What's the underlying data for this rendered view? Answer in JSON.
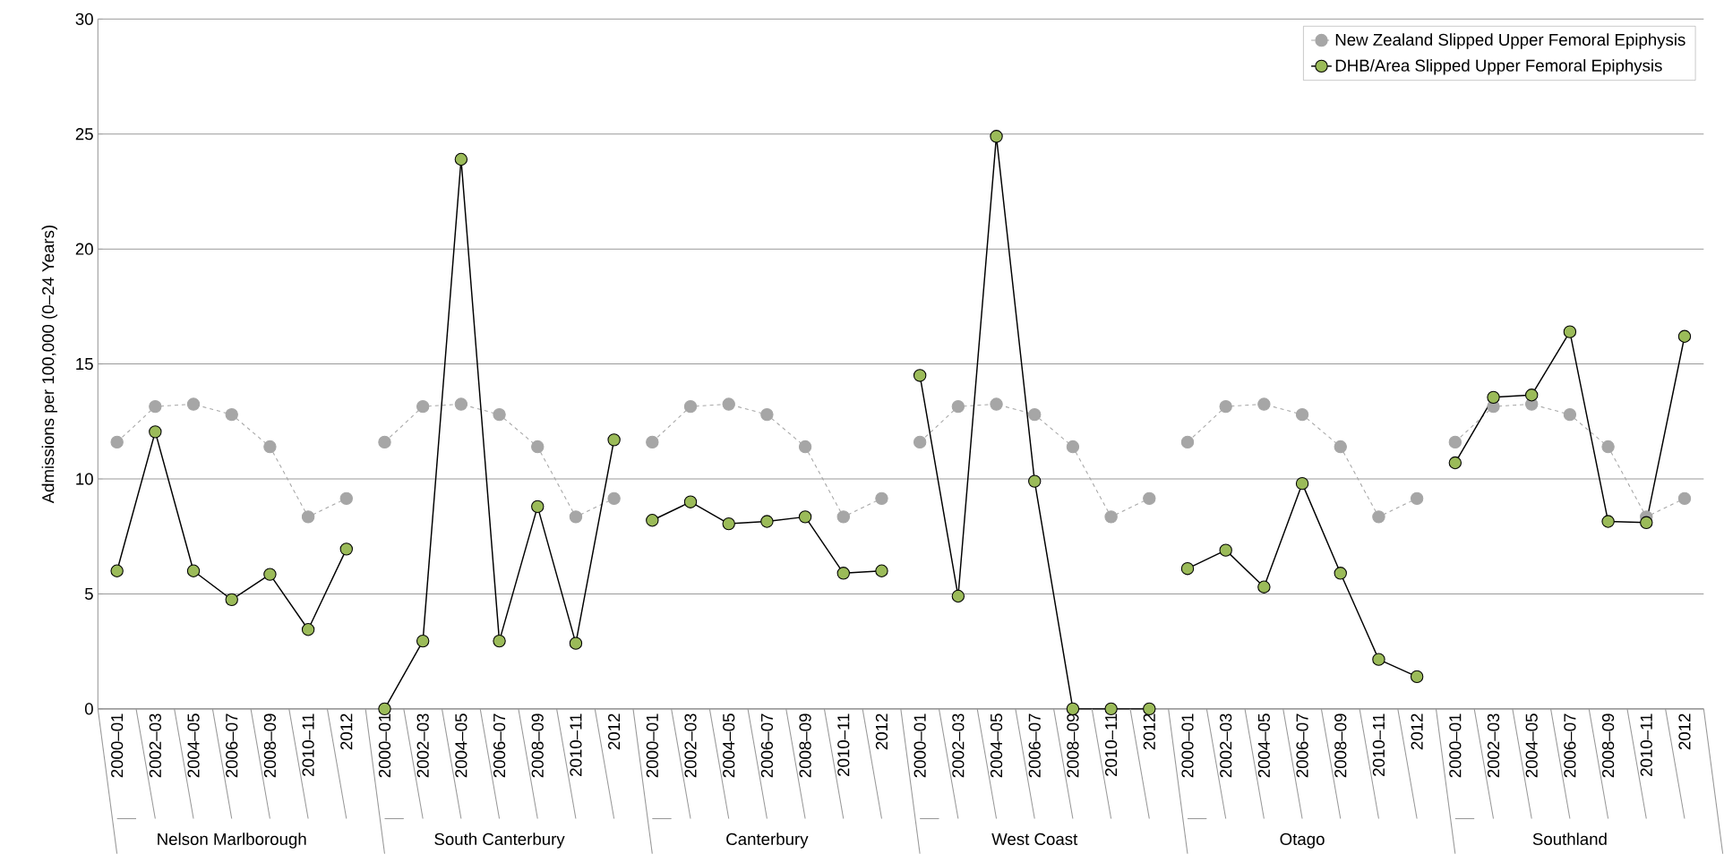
{
  "chart_data": {
    "type": "line",
    "ylabel": "Admissions per 100,000 (0–24  Years)",
    "categories": [
      "2000–01",
      "2002–03",
      "2004–05",
      "2006–07",
      "2008–09",
      "2010–11",
      "2012",
      "2000–01",
      "2002–03",
      "2004–05",
      "2006–07",
      "2008–09",
      "2010–11",
      "2012",
      "2000–01",
      "2002–03",
      "2004–05",
      "2006–07",
      "2008–09",
      "2010–11",
      "2012",
      "2000–01",
      "2002–03",
      "2004–05",
      "2006–07",
      "2008–09",
      "2010–11",
      "2012",
      "2000–01",
      "2002–03",
      "2004–05",
      "2006–07",
      "2008–09",
      "2010–11",
      "2012",
      "2000–01",
      "2002–03",
      "2004–05",
      "2006–07",
      "2008–09",
      "2010–11",
      "2012"
    ],
    "series": [
      {
        "name": "New Zealand  Slipped Upper Femoral Epiphysis",
        "color": "#a6a6a6",
        "line_style": "dashed",
        "values": [
          11.6,
          13.15,
          13.25,
          12.8,
          11.4,
          8.35,
          9.15,
          null,
          null,
          null,
          null,
          null,
          null,
          null,
          null,
          null,
          null,
          null,
          null,
          null,
          null,
          null,
          null,
          null,
          null,
          null,
          null,
          null,
          null,
          null,
          null,
          null,
          null,
          null,
          null,
          null,
          null,
          null,
          null,
          null,
          null,
          null
        ]
      },
      {
        "color": "#a6a6a6",
        "line_style": "dashed",
        "values": [
          null,
          null,
          null,
          null,
          null,
          null,
          null,
          11.6,
          13.15,
          13.25,
          12.8,
          11.4,
          8.35,
          9.15,
          null,
          null,
          null,
          null,
          null,
          null,
          null,
          null,
          null,
          null,
          null,
          null,
          null,
          null,
          null,
          null,
          null,
          null,
          null,
          null,
          null,
          null,
          null,
          null,
          null,
          null,
          null,
          null
        ]
      },
      {
        "color": "#a6a6a6",
        "line_style": "dashed",
        "values": [
          null,
          null,
          null,
          null,
          null,
          null,
          null,
          null,
          null,
          null,
          null,
          null,
          null,
          null,
          11.6,
          13.15,
          13.25,
          12.8,
          11.4,
          8.35,
          9.15,
          null,
          null,
          null,
          null,
          null,
          null,
          null,
          null,
          null,
          null,
          null,
          null,
          null,
          null,
          null,
          null,
          null,
          null,
          null,
          null,
          null
        ]
      },
      {
        "color": "#a6a6a6",
        "line_style": "dashed",
        "values": [
          null,
          null,
          null,
          null,
          null,
          null,
          null,
          null,
          null,
          null,
          null,
          null,
          null,
          null,
          null,
          null,
          null,
          null,
          null,
          null,
          null,
          11.6,
          13.15,
          13.25,
          12.8,
          11.4,
          8.35,
          9.15,
          null,
          null,
          null,
          null,
          null,
          null,
          null,
          null,
          null,
          null,
          null,
          null,
          null,
          null
        ]
      },
      {
        "color": "#a6a6a6",
        "line_style": "dashed",
        "values": [
          null,
          null,
          null,
          null,
          null,
          null,
          null,
          null,
          null,
          null,
          null,
          null,
          null,
          null,
          null,
          null,
          null,
          null,
          null,
          null,
          null,
          null,
          null,
          null,
          null,
          null,
          null,
          null,
          11.6,
          13.15,
          13.25,
          12.8,
          11.4,
          8.35,
          9.15,
          null,
          null,
          null,
          null,
          null,
          null,
          null
        ]
      },
      {
        "color": "#a6a6a6",
        "line_style": "dashed",
        "values": [
          null,
          null,
          null,
          null,
          null,
          null,
          null,
          null,
          null,
          null,
          null,
          null,
          null,
          null,
          null,
          null,
          null,
          null,
          null,
          null,
          null,
          null,
          null,
          null,
          null,
          null,
          null,
          null,
          null,
          null,
          null,
          null,
          null,
          null,
          null,
          11.6,
          13.15,
          13.25,
          12.8,
          11.4,
          8.35,
          9.15
        ]
      },
      {
        "name": "DHB/Area Slipped Upper Femoral Epiphysis",
        "color": "#9bbb59",
        "values": [
          6.0,
          12.05,
          6.0,
          4.75,
          5.85,
          3.45,
          6.95,
          null,
          null,
          null,
          null,
          null,
          null,
          null,
          null,
          null,
          null,
          null,
          null,
          null,
          null,
          null,
          null,
          null,
          null,
          null,
          null,
          null,
          null,
          null,
          null,
          null,
          null,
          null,
          null,
          null,
          null,
          null,
          null,
          null,
          null,
          null
        ]
      },
      {
        "color": "#9bbb59",
        "values": [
          null,
          null,
          null,
          null,
          null,
          null,
          null,
          0,
          2.95,
          23.9,
          2.95,
          8.8,
          2.85,
          11.7,
          null,
          null,
          null,
          null,
          null,
          null,
          null,
          null,
          null,
          null,
          null,
          null,
          null,
          null,
          null,
          null,
          null,
          null,
          null,
          null,
          null,
          null,
          null,
          null,
          null,
          null,
          null,
          null
        ]
      },
      {
        "color": "#9bbb59",
        "values": [
          null,
          null,
          null,
          null,
          null,
          null,
          null,
          null,
          null,
          null,
          null,
          null,
          null,
          null,
          8.2,
          9.0,
          8.05,
          8.15,
          8.35,
          5.9,
          6.0,
          null,
          null,
          null,
          null,
          null,
          null,
          null,
          null,
          null,
          null,
          null,
          null,
          null,
          null,
          null,
          null,
          null,
          null,
          null,
          null,
          null
        ]
      },
      {
        "color": "#9bbb59",
        "values": [
          null,
          null,
          null,
          null,
          null,
          null,
          null,
          null,
          null,
          null,
          null,
          null,
          null,
          null,
          null,
          null,
          null,
          null,
          null,
          null,
          null,
          14.5,
          4.9,
          24.9,
          9.9,
          0,
          0,
          0,
          null,
          null,
          null,
          null,
          null,
          null,
          null,
          null,
          null,
          null,
          null,
          null,
          null,
          null
        ]
      },
      {
        "color": "#9bbb59",
        "values": [
          null,
          null,
          null,
          null,
          null,
          null,
          null,
          null,
          null,
          null,
          null,
          null,
          null,
          null,
          null,
          null,
          null,
          null,
          null,
          null,
          null,
          null,
          null,
          null,
          null,
          null,
          null,
          null,
          6.1,
          6.9,
          5.3,
          9.8,
          5.9,
          2.15,
          1.4,
          null,
          null,
          null,
          null,
          null,
          null,
          null
        ]
      },
      {
        "color": "#9bbb59",
        "values": [
          null,
          null,
          null,
          null,
          null,
          null,
          null,
          null,
          null,
          null,
          null,
          null,
          null,
          null,
          null,
          null,
          null,
          null,
          null,
          null,
          null,
          null,
          null,
          null,
          null,
          null,
          null,
          null,
          null,
          null,
          null,
          null,
          null,
          null,
          null,
          10.7,
          13.55,
          13.65,
          16.4,
          8.15,
          8.1,
          16.2
        ]
      }
    ],
    "annotations": [
      "Nelson Marlborough",
      "South Canterbury",
      "Canterbury",
      "West Coast",
      "Otago",
      "Southland"
    ],
    "ylim": [
      0,
      30
    ],
    "yticks": [
      0,
      5,
      10,
      15,
      20,
      25,
      30
    ],
    "grid": "y",
    "legend": "top right",
    "marker": "circle",
    "line_style": "solid"
  }
}
